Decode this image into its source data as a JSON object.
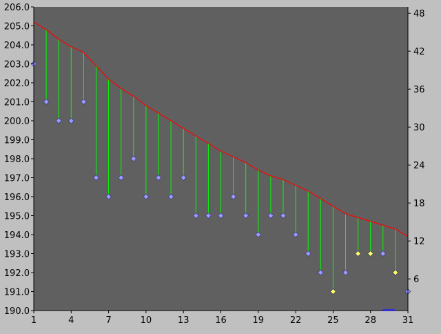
{
  "chart_data": {
    "type": "line",
    "x": [
      1,
      2,
      3,
      4,
      5,
      6,
      7,
      8,
      9,
      10,
      11,
      12,
      13,
      14,
      15,
      16,
      17,
      18,
      19,
      20,
      21,
      22,
      23,
      24,
      25,
      26,
      27,
      28,
      29,
      30,
      31
    ],
    "x_ticks": [
      "1",
      "4",
      "7",
      "10",
      "13",
      "16",
      "19",
      "22",
      "25",
      "28",
      "31"
    ],
    "y_left_ticks": [
      "190.0",
      "191.0",
      "192.0",
      "193.0",
      "194.0",
      "195.0",
      "196.0",
      "197.0",
      "198.0",
      "199.0",
      "200.0",
      "201.0",
      "202.0",
      "203.0",
      "204.0",
      "205.0",
      "206.0"
    ],
    "y_right_ticks": [
      "6",
      "12",
      "18",
      "24",
      "30",
      "36",
      "42",
      "48"
    ],
    "xlim": [
      1,
      31
    ],
    "ylim_left": [
      190,
      206
    ],
    "ylim_right": [
      1,
      49
    ],
    "grid": false,
    "series": [
      {
        "axis": "left",
        "style": "line",
        "color": "#ff0000",
        "values": [
          205.2,
          204.8,
          204.3,
          203.9,
          203.6,
          202.9,
          202.2,
          201.7,
          201.3,
          200.8,
          200.4,
          200.0,
          199.6,
          199.2,
          198.8,
          198.4,
          198.1,
          197.8,
          197.4,
          197.1,
          196.9,
          196.6,
          196.3,
          195.9,
          195.5,
          195.1,
          194.9,
          194.7,
          194.5,
          194.3,
          193.9
        ]
      },
      {
        "axis": "left",
        "style": "points",
        "marker": "diamond",
        "color_default": "#9999ff",
        "color_highlight": "#ffff66",
        "values": [
          203,
          201,
          200,
          200,
          201,
          197,
          196,
          197,
          198,
          196,
          197,
          196,
          197,
          195,
          195,
          195,
          196,
          195,
          194,
          195,
          195,
          194,
          193,
          192,
          191,
          192,
          193,
          193,
          193,
          192,
          191
        ],
        "highlight": [
          false,
          false,
          false,
          false,
          false,
          false,
          false,
          false,
          false,
          false,
          false,
          false,
          false,
          false,
          false,
          false,
          false,
          false,
          false,
          false,
          false,
          false,
          false,
          false,
          true,
          false,
          true,
          true,
          false,
          true,
          false
        ]
      }
    ],
    "drop_line_color": "#00ff00",
    "plot_background": "#606060"
  }
}
